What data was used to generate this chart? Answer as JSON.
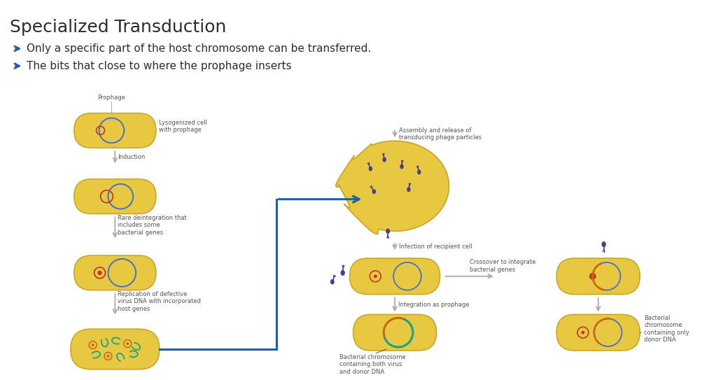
{
  "title": "Specialized Transduction",
  "bullet1": "Only a specific part of the host chromosome can be transferred.",
  "bullet2": "The bits that close to where the prophage inserts",
  "bg_color": "#ffffff",
  "cell_fill": "#e8c840",
  "cell_edge": "#c8a828",
  "cell_inner_edge": "#d4b030",
  "title_color": "#2c2c2c",
  "bullet_arrow_color": "#1e5fa8",
  "arrow_gray": "#aaaaaa",
  "arrow_blue": "#1e5fa8",
  "phage_color": "#4a3d8f",
  "dna_blue": "#4472c4",
  "dna_red": "#c0392b",
  "dna_orange": "#c8681a",
  "dna_teal": "#17a589",
  "label_color": "#555555",
  "label_fs": 6.0,
  "label_fs2": 6.5,
  "bullet_fs": 11,
  "title_fs": 18
}
